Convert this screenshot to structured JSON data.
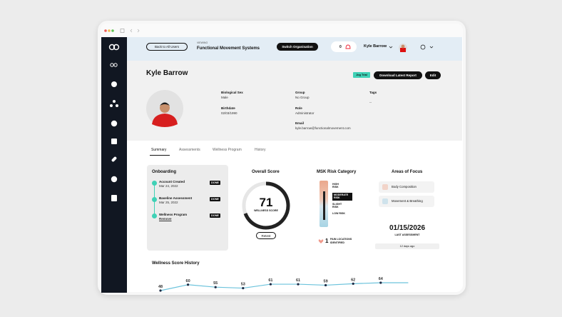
{
  "header": {
    "back": "Back to All Users",
    "viewing_label": "VIEWING",
    "organisation": "Functional Movement Systems",
    "switch": "Switch Organisation",
    "notifications": "0",
    "user": "Kyle Barrow"
  },
  "profile": {
    "name": "Kyle Barrow",
    "badge": "Jog Trial",
    "download": "Download Latest Report",
    "edit": "Edit",
    "fields": [
      {
        "label": "Biological Sex",
        "value": "Male"
      },
      {
        "label": "Group",
        "value": "No Group"
      },
      {
        "label": "Tags",
        "value": "--"
      },
      {
        "label": "Birthdate",
        "value": "02/03/1990"
      },
      {
        "label": "Role",
        "value": "Administrator"
      },
      {
        "label": "Email",
        "value": "kyle.barrow@functionalmovement.com"
      }
    ]
  },
  "tabs": [
    "Summary",
    "Assessments",
    "Wellness Program",
    "History"
  ],
  "onboarding": {
    "title": "Onboarding",
    "steps": [
      {
        "name": "Account Created",
        "detail": "Mar 24, 2022",
        "status": "DONE"
      },
      {
        "name": "Baseline Assessment",
        "detail": "Mar 25, 2022",
        "status": "DONE"
      },
      {
        "name": "Wellness Program",
        "detail": "Remove",
        "status": "DONE"
      }
    ]
  },
  "overall_score": {
    "title": "Overall Score",
    "score": 71,
    "label": "WELLNESS SCORE",
    "button": "Retest"
  },
  "msk": {
    "title": "MSK Risk Category",
    "levels": [
      "HIGH RISK",
      "MODERATE RISK",
      "SLIGHT RISK",
      "LOW RISK"
    ],
    "pain_count": 1,
    "pain_label": "PAIN LOCATIONS IDENTIFIED"
  },
  "focus": {
    "title": "Areas of Focus",
    "items": [
      "Body Composition",
      "Movement & Breathing"
    ],
    "date": "01/15/2026",
    "date_label": "LAST ASSESSMENT",
    "ago": "12 days ago"
  },
  "wellness_history": {
    "title": "Wellness Score History",
    "values": [
      48,
      60,
      55,
      53,
      61,
      61,
      59,
      62,
      64
    ]
  }
}
